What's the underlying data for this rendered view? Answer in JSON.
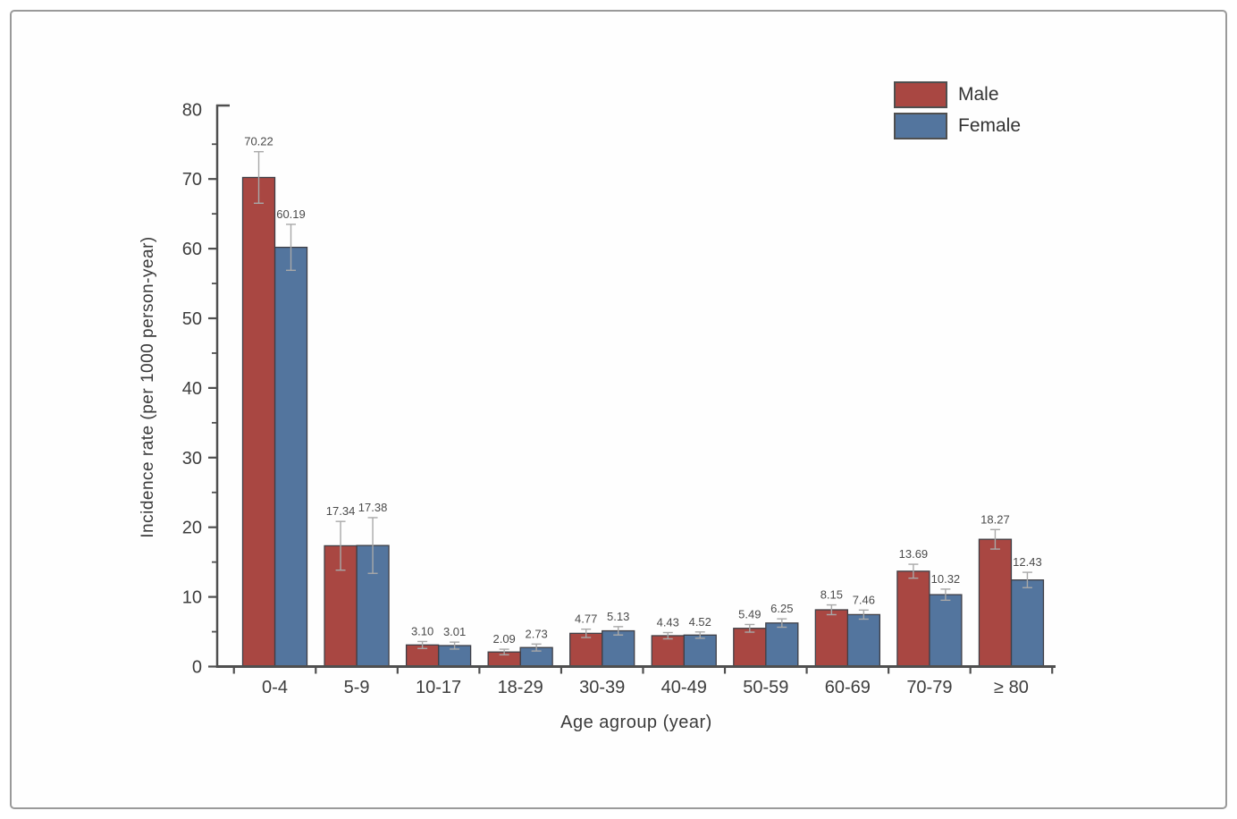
{
  "chart_data": {
    "type": "bar",
    "title": "",
    "xlabel": "Age agroup (year)",
    "ylabel": "Incidence rate (per 1000 person-year)",
    "ylim": [
      0,
      80
    ],
    "y_major_ticks": [
      0,
      10,
      20,
      30,
      40,
      50,
      60,
      70,
      80
    ],
    "y_minor_step": 5,
    "grid": false,
    "legend_position": "top-right",
    "categories": [
      "0-4",
      "5-9",
      "10-17",
      "18-29",
      "30-39",
      "40-49",
      "50-59",
      "60-69",
      "70-79",
      "≥ 80"
    ],
    "series": [
      {
        "name": "Male",
        "color": "#a94742",
        "values": [
          70.22,
          17.34,
          3.1,
          2.09,
          4.77,
          4.43,
          5.49,
          8.15,
          13.69,
          18.27
        ],
        "labels": [
          "70.22",
          "17.34",
          "3.10",
          "2.09",
          "4.77",
          "4.43",
          "5.49",
          "8.15",
          "13.69",
          "18.27"
        ],
        "errors": [
          3.7,
          3.5,
          0.5,
          0.4,
          0.6,
          0.45,
          0.55,
          0.7,
          1.0,
          1.4
        ]
      },
      {
        "name": "Female",
        "color": "#53759e",
        "values": [
          60.19,
          17.38,
          3.01,
          2.73,
          5.13,
          4.52,
          6.25,
          7.46,
          10.32,
          12.43
        ],
        "labels": [
          "60.19",
          "17.38",
          "3.01",
          "2.73",
          "5.13",
          "4.52",
          "6.25",
          "7.46",
          "10.32",
          "12.43"
        ],
        "errors": [
          3.3,
          4.0,
          0.5,
          0.5,
          0.6,
          0.45,
          0.6,
          0.65,
          0.8,
          1.1
        ]
      }
    ],
    "colors": {
      "bar_stroke": "#3f3f46",
      "axis": "#4f4f4f",
      "text": "#3d3d3d",
      "value_label": "#4a4a4a",
      "error_bar": "#a8a8a8"
    }
  }
}
